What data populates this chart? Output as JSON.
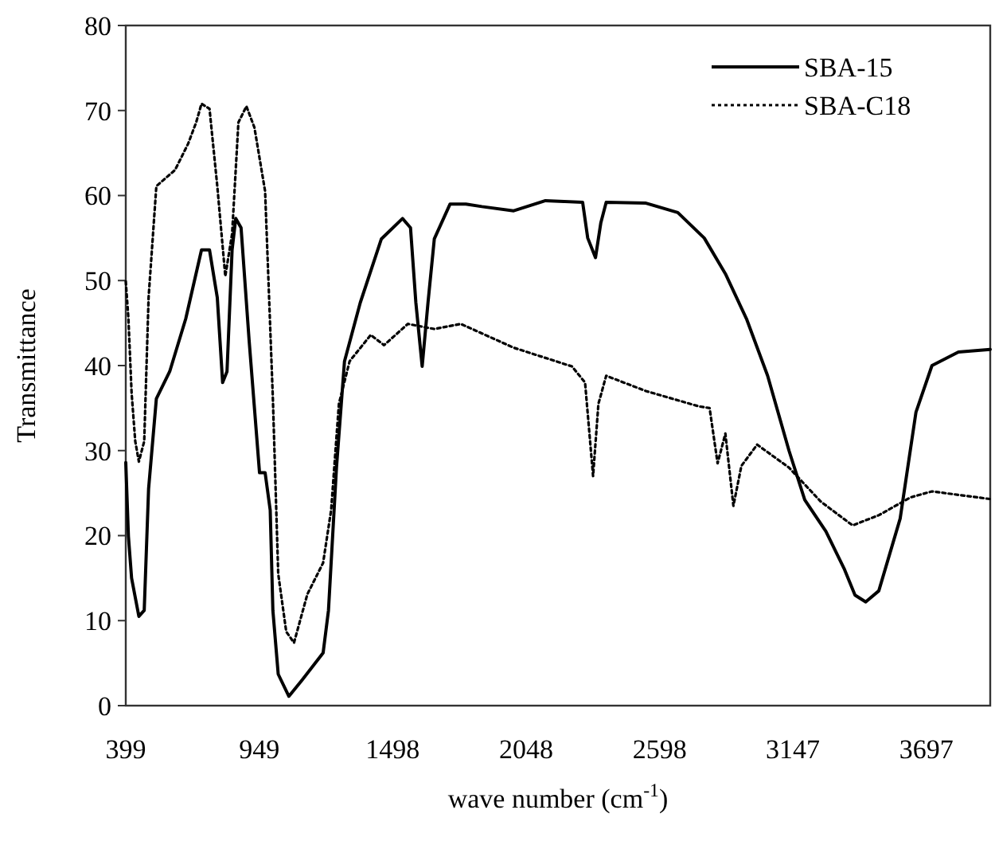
{
  "chart_data": {
    "type": "line",
    "xlabel": "wave number (cm$^{-1}$)",
    "ylabel": "Transmittance",
    "xlim": [
      399,
      3960
    ],
    "xticks": [
      399,
      949,
      1498,
      2048,
      2598,
      3147,
      3697
    ],
    "ylim": [
      0,
      80
    ],
    "yticks": [
      0,
      10,
      20,
      30,
      40,
      50,
      60,
      70,
      80
    ],
    "grid": false,
    "legend": "top right",
    "series": [
      {
        "name": "SBA-15",
        "color": "#000000",
        "line_style": "solid",
        "x": [
          399,
          410,
          423,
          453,
          475,
          493,
          525,
          580,
          646,
          711,
          744,
          776,
          798,
          816,
          837,
          852,
          874,
          907,
          950,
          973,
          994,
          1005,
          1027,
          1071,
          1125,
          1212,
          1234,
          1267,
          1300,
          1365,
          1452,
          1539,
          1572,
          1594,
          1620,
          1644,
          1670,
          1735,
          1800,
          1866,
          1997,
          2128,
          2281,
          2302,
          2334,
          2356,
          2378,
          2542,
          2673,
          2782,
          2869,
          2956,
          3043,
          3131,
          3196,
          3283,
          3360,
          3403,
          3447,
          3501,
          3589,
          3654,
          3720,
          3829,
          3960
        ],
        "values": [
          28.6,
          19.9,
          15,
          10.5,
          11.2,
          25.5,
          36.1,
          39.3,
          45.5,
          53.6,
          53.6,
          48,
          38,
          39.3,
          53.6,
          57.3,
          56.2,
          43,
          27.4,
          27.4,
          23,
          11.2,
          3.7,
          1.1,
          3,
          6.2,
          11.2,
          28,
          40.5,
          47.4,
          54.9,
          57.3,
          56.2,
          47.4,
          39.9,
          47.4,
          54.9,
          59,
          59,
          58.7,
          58.2,
          59.4,
          59.2,
          55,
          52.7,
          56.8,
          59.2,
          59.1,
          58,
          55,
          50.8,
          45.5,
          38.8,
          30,
          24.2,
          20.5,
          16,
          13,
          12.2,
          13.5,
          22,
          34.5,
          40,
          41.6,
          41.9
        ]
      },
      {
        "name": "SBA-C18",
        "color": "#000000",
        "line_style": "dotted",
        "x": [
          399,
          410,
          423,
          438,
          453,
          475,
          493,
          525,
          602,
          656,
          689,
          711,
          744,
          776,
          809,
          837,
          863,
          896,
          929,
          973,
          1005,
          1027,
          1060,
          1092,
          1147,
          1212,
          1245,
          1277,
          1321,
          1408,
          1463,
          1561,
          1670,
          1779,
          1997,
          2237,
          2291,
          2324,
          2346,
          2378,
          2542,
          2760,
          2804,
          2837,
          2869,
          2902,
          2935,
          3000,
          3131,
          3262,
          3393,
          3501,
          3632,
          3720,
          3960
        ],
        "values": [
          49.9,
          45.5,
          36.8,
          31.1,
          28.7,
          31.1,
          48,
          61.1,
          63,
          66.1,
          68.6,
          70.8,
          70.2,
          61.1,
          50.5,
          55.5,
          68.6,
          70.5,
          68,
          60.5,
          36.1,
          15.5,
          8.7,
          7.4,
          13.1,
          16.8,
          23,
          35.5,
          40.5,
          43.6,
          42.4,
          44.9,
          44.3,
          44.9,
          42.1,
          39.9,
          38,
          27,
          35.5,
          38.8,
          37,
          35.2,
          35,
          28.5,
          32,
          23.5,
          28.2,
          30.7,
          28,
          24,
          21.2,
          22.4,
          24.5,
          25.2,
          24.3
        ]
      }
    ]
  }
}
